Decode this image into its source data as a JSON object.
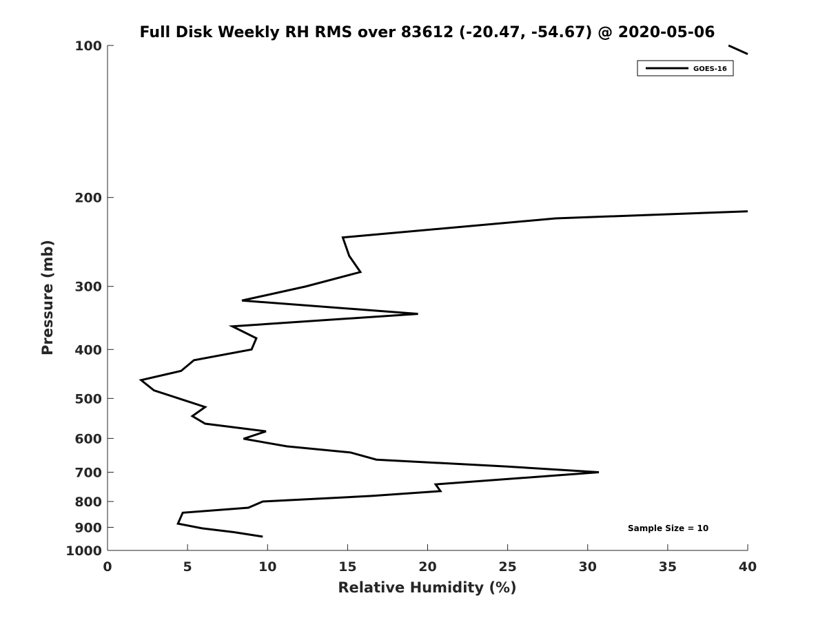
{
  "chart_data": {
    "type": "line",
    "title": "Full Disk Weekly RH RMS over 83612 (-20.47, -54.67) @ 2020-05-06",
    "xlabel": "Relative Humidity (%)",
    "ylabel": "Pressure (mb)",
    "xlim": [
      0,
      40
    ],
    "ylim": [
      100,
      1000
    ],
    "yscale": "log",
    "yreversed": true,
    "grid": false,
    "xticks": [
      "0",
      "5",
      "10",
      "15",
      "20",
      "25",
      "30",
      "35",
      "40"
    ],
    "yticks": [
      "100",
      "200",
      "300",
      "400",
      "500",
      "600",
      "700",
      "800",
      "900",
      "1000"
    ],
    "legend": {
      "placement": "top-right",
      "entries": [
        "GOES-16"
      ]
    },
    "annotation": "Sample Size = 10",
    "series": [
      {
        "name": "GOES-16",
        "color": "#000000",
        "points": [
          [
            38.8,
            100
          ],
          [
            40,
            104
          ],
          [
            40,
            213
          ],
          [
            28.0,
            220
          ],
          [
            14.7,
            240
          ],
          [
            15.1,
            261
          ],
          [
            15.8,
            281
          ],
          [
            12.4,
            300
          ],
          [
            8.4,
            320
          ],
          [
            19.4,
            340
          ],
          [
            7.8,
            360
          ],
          [
            9.3,
            380
          ],
          [
            9.0,
            400
          ],
          [
            5.4,
            420
          ],
          [
            4.6,
            441
          ],
          [
            2.1,
            460
          ],
          [
            2.9,
            482
          ],
          [
            6.1,
            520
          ],
          [
            5.3,
            542
          ],
          [
            6.1,
            561
          ],
          [
            9.9,
            581
          ],
          [
            8.5,
            601
          ],
          [
            11.2,
            622
          ],
          [
            15.2,
            640
          ],
          [
            16.8,
            661
          ],
          [
            24.9,
            682
          ],
          [
            30.7,
            700
          ],
          [
            20.5,
            740
          ],
          [
            20.8,
            763
          ],
          [
            16.5,
            780
          ],
          [
            9.7,
            800
          ],
          [
            8.8,
            823
          ],
          [
            4.7,
            842
          ],
          [
            4.4,
            885
          ],
          [
            5.9,
            904
          ],
          [
            7.9,
            920
          ],
          [
            9.7,
            939
          ]
        ]
      }
    ]
  }
}
